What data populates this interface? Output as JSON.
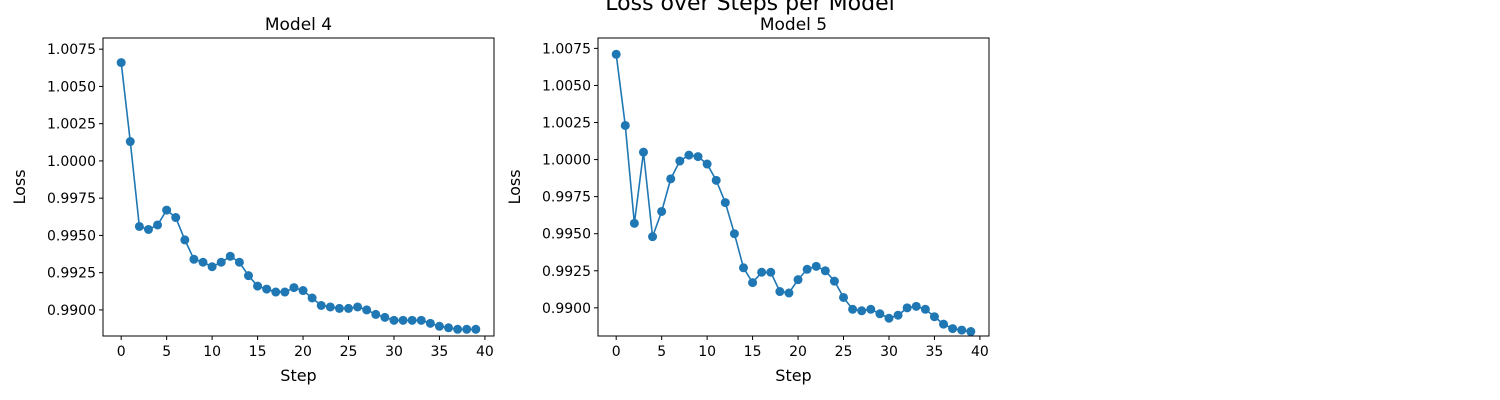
{
  "suptitle": "Loss over Steps per Model",
  "chart_data": [
    {
      "type": "line",
      "title": "Model 4",
      "xlabel": "Step",
      "ylabel": "Loss",
      "xlim": [
        -2,
        41
      ],
      "ylim": [
        0.98825,
        1.00825
      ],
      "xticks": [
        0,
        5,
        10,
        15,
        20,
        25,
        30,
        35,
        40
      ],
      "yticks": [
        0.99,
        0.9925,
        0.995,
        0.9975,
        1.0,
        1.0025,
        1.005,
        1.0075
      ],
      "ytick_labels": [
        "0.9900",
        "0.9925",
        "0.9950",
        "0.9975",
        "1.0000",
        "1.0025",
        "1.0050",
        "1.0075"
      ],
      "color": "#1f77b4",
      "marker": "circle",
      "grid": false,
      "x": [
        0,
        1,
        2,
        3,
        4,
        5,
        6,
        7,
        8,
        9,
        10,
        11,
        12,
        13,
        14,
        15,
        16,
        17,
        18,
        19,
        20,
        21,
        22,
        23,
        24,
        25,
        26,
        27,
        28,
        29,
        30,
        31,
        32,
        33,
        34,
        35,
        36,
        37,
        38,
        39
      ],
      "y": [
        1.0066,
        1.0013,
        0.9956,
        0.9954,
        0.9957,
        0.9967,
        0.9962,
        0.9947,
        0.9934,
        0.9932,
        0.9929,
        0.9932,
        0.9936,
        0.9932,
        0.9923,
        0.9916,
        0.9914,
        0.9912,
        0.9912,
        0.9915,
        0.9913,
        0.9908,
        0.9903,
        0.9902,
        0.9901,
        0.9901,
        0.9902,
        0.99,
        0.9897,
        0.9895,
        0.9893,
        0.9893,
        0.9893,
        0.9893,
        0.9891,
        0.9889,
        0.9888,
        0.9887,
        0.9887,
        0.9887
      ]
    },
    {
      "type": "line",
      "title": "Model 5",
      "xlabel": "Step",
      "ylabel": "Loss",
      "xlim": [
        -2,
        41
      ],
      "ylim": [
        0.9881,
        1.0082
      ],
      "xticks": [
        0,
        5,
        10,
        15,
        20,
        25,
        30,
        35,
        40
      ],
      "yticks": [
        0.99,
        0.9925,
        0.995,
        0.9975,
        1.0,
        1.0025,
        1.005,
        1.0075
      ],
      "ytick_labels": [
        "0.9900",
        "0.9925",
        "0.9950",
        "0.9975",
        "1.0000",
        "1.0025",
        "1.0050",
        "1.0075"
      ],
      "color": "#1f77b4",
      "marker": "circle",
      "grid": false,
      "x": [
        0,
        1,
        2,
        3,
        4,
        5,
        6,
        7,
        8,
        9,
        10,
        11,
        12,
        13,
        14,
        15,
        16,
        17,
        18,
        19,
        20,
        21,
        22,
        23,
        24,
        25,
        26,
        27,
        28,
        29,
        30,
        31,
        32,
        33,
        34,
        35,
        36,
        37,
        38,
        39
      ],
      "y": [
        1.0071,
        1.0023,
        0.9957,
        1.0005,
        0.9948,
        0.9965,
        0.9987,
        0.9999,
        1.0003,
        1.0002,
        0.9997,
        0.9986,
        0.9971,
        0.995,
        0.9927,
        0.9917,
        0.9924,
        0.9924,
        0.9911,
        0.991,
        0.9919,
        0.9926,
        0.9928,
        0.9925,
        0.9918,
        0.9907,
        0.9899,
        0.9898,
        0.9899,
        0.9896,
        0.9893,
        0.9895,
        0.99,
        0.9901,
        0.9899,
        0.9894,
        0.9889,
        0.9886,
        0.9885,
        0.9884
      ]
    }
  ]
}
